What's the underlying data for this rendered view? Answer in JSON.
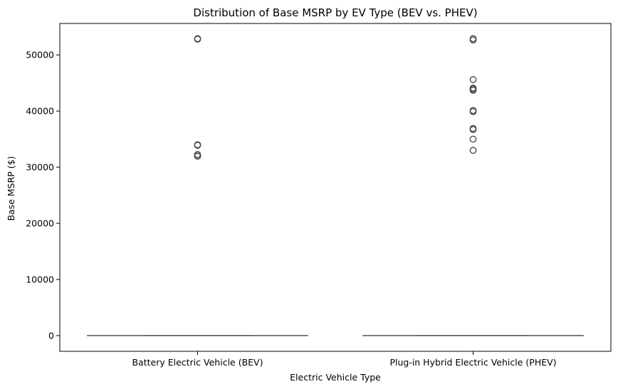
{
  "chart_data": {
    "type": "box",
    "title": "Distribution of Base MSRP by EV Type (BEV vs. PHEV)",
    "xlabel": "Electric Vehicle Type",
    "ylabel": "Base MSRP ($)",
    "ylim": [
      -2800,
      55600
    ],
    "yticks": [
      0,
      10000,
      20000,
      30000,
      40000,
      50000
    ],
    "categories": [
      "Battery Electric Vehicle (BEV)",
      "Plug-in Hybrid Electric Vehicle (PHEV)"
    ],
    "boxes": [
      {
        "category": "Battery Electric Vehicle (BEV)",
        "min": 0,
        "q1": 0,
        "median": 0,
        "q3": 0,
        "max": 0,
        "outliers": [
          52900,
          52800,
          34000,
          33900,
          32250,
          32000,
          31950
        ]
      },
      {
        "category": "Plug-in Hybrid Electric Vehicle (PHEV)",
        "min": 0,
        "q1": 0,
        "median": 0,
        "q3": 0,
        "max": 0,
        "outliers": [
          52900,
          52650,
          45600,
          44100,
          43900,
          43700,
          40100,
          39900,
          36900,
          36700,
          34995,
          32995
        ]
      }
    ],
    "grid": false,
    "colors": {
      "box_line": "#4d4d4d",
      "outlier": "#4d4d4d",
      "axes": "#000000"
    }
  }
}
